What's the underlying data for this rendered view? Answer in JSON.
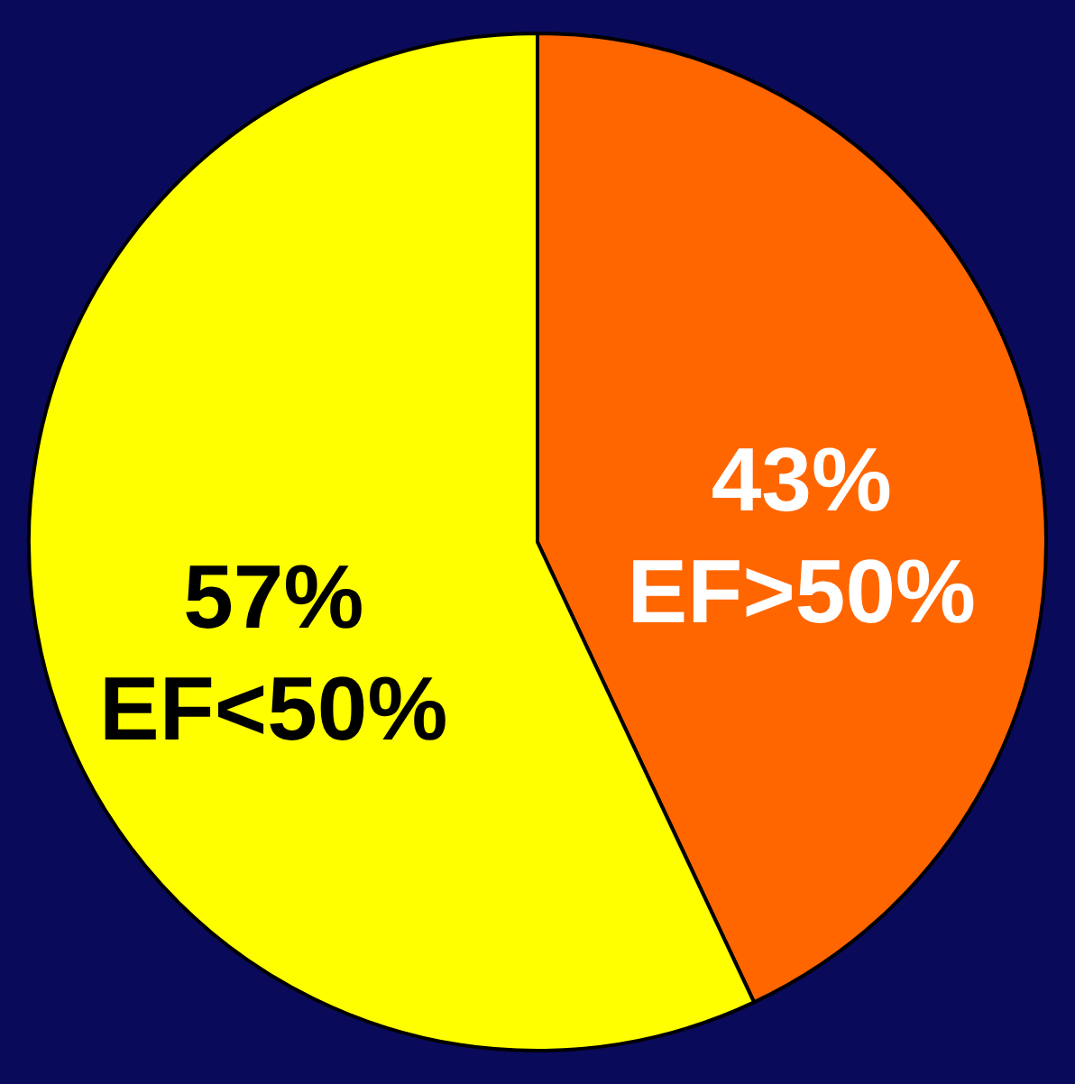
{
  "chart_data": {
    "type": "pie",
    "categories": [
      "EF>50%",
      "EF<50%"
    ],
    "values": [
      43,
      57
    ],
    "colors": [
      "#ff6600",
      "#ffff00"
    ],
    "value_labels": [
      "43%",
      "57%"
    ]
  }
}
